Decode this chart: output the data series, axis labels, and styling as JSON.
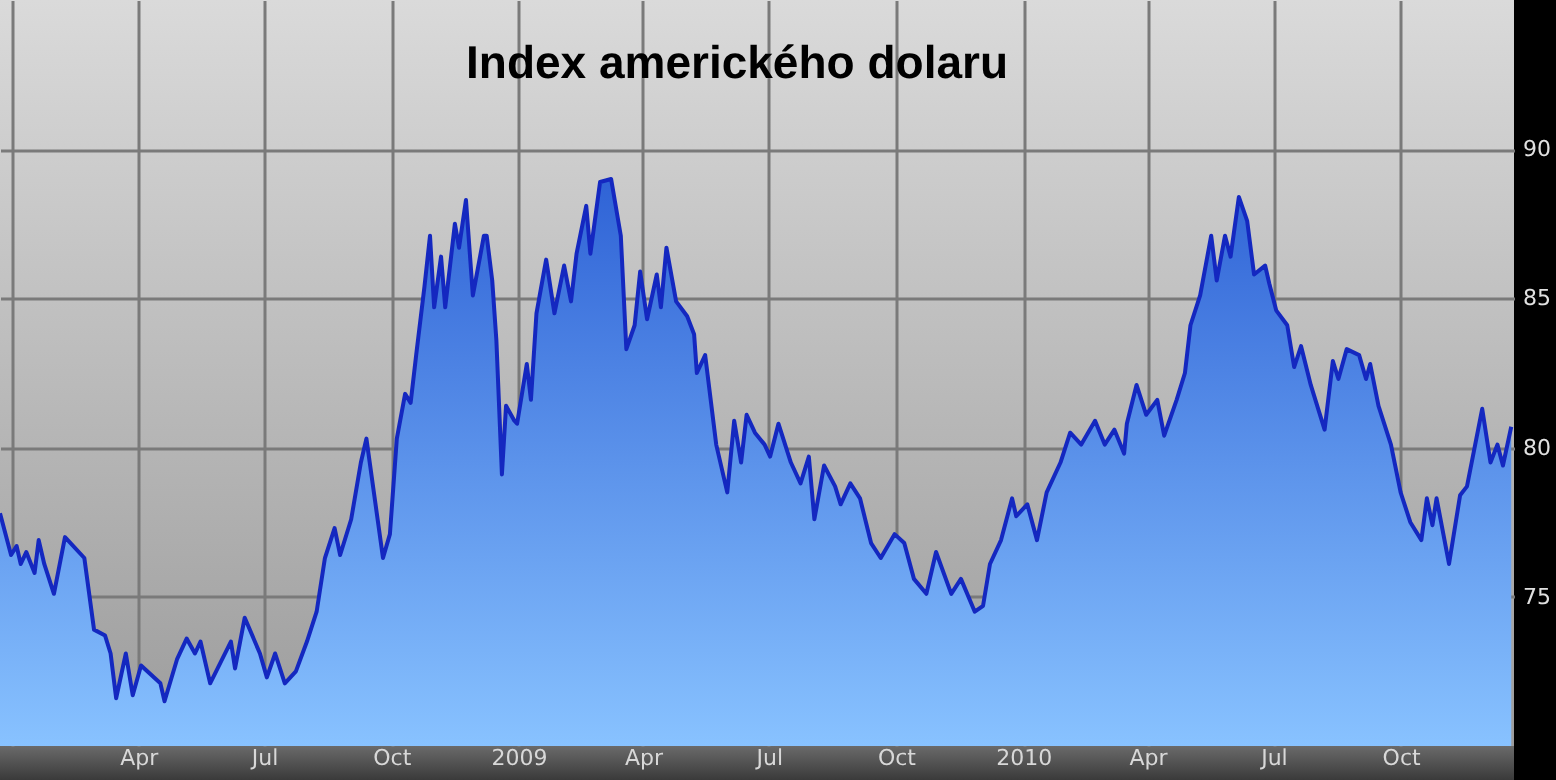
{
  "chart_data": {
    "type": "area",
    "title": "Index amerického dolaru",
    "x": [
      "2007-12-23",
      "2007-12-31",
      "2008-01-04",
      "2008-01-07",
      "2008-01-11",
      "2008-01-17",
      "2008-01-20",
      "2008-01-24",
      "2008-01-31",
      "2008-02-08",
      "2008-02-22",
      "2008-02-29",
      "2008-03-08",
      "2008-03-12",
      "2008-03-16",
      "2008-03-23",
      "2008-03-28",
      "2008-04-03",
      "2008-04-17",
      "2008-04-20",
      "2008-04-29",
      "2008-05-06",
      "2008-05-12",
      "2008-05-16",
      "2008-05-23",
      "2008-06-07",
      "2008-06-10",
      "2008-06-17",
      "2008-06-28",
      "2008-07-03",
      "2008-07-09",
      "2008-07-16",
      "2008-07-24",
      "2008-08-01",
      "2008-08-08",
      "2008-08-14",
      "2008-08-21",
      "2008-08-25",
      "2008-09-02",
      "2008-09-09",
      "2008-09-13",
      "2008-09-19",
      "2008-09-25",
      "2008-09-30",
      "2008-10-05",
      "2008-10-11",
      "2008-10-15",
      "2008-10-19",
      "2008-10-25",
      "2008-10-29",
      "2008-11-01",
      "2008-11-06",
      "2008-11-09",
      "2008-11-16",
      "2008-11-19",
      "2008-11-24",
      "2008-11-29",
      "2008-12-07",
      "2008-12-09",
      "2008-12-13",
      "2008-12-16",
      "2008-12-20",
      "2008-12-23",
      "2008-12-29",
      "2008-12-31",
      "2009-01-07",
      "2009-01-10",
      "2009-01-14",
      "2009-01-21",
      "2009-01-27",
      "2009-02-03",
      "2009-02-08",
      "2009-02-12",
      "2009-02-19",
      "2009-02-22",
      "2009-03-01",
      "2009-03-09",
      "2009-03-16",
      "2009-03-20",
      "2009-03-26",
      "2009-03-30",
      "2009-04-04",
      "2009-04-11",
      "2009-04-14",
      "2009-04-18",
      "2009-04-25",
      "2009-05-03",
      "2009-05-08",
      "2009-05-10",
      "2009-05-16",
      "2009-05-24",
      "2009-06-01",
      "2009-06-06",
      "2009-06-11",
      "2009-06-15",
      "2009-06-21",
      "2009-06-28",
      "2009-07-02",
      "2009-07-08",
      "2009-07-17",
      "2009-07-24",
      "2009-07-30",
      "2009-08-03",
      "2009-08-10",
      "2009-08-18",
      "2009-08-22",
      "2009-08-29",
      "2009-09-05",
      "2009-09-13",
      "2009-09-20",
      "2009-09-30",
      "2009-10-07",
      "2009-10-14",
      "2009-10-23",
      "2009-10-30",
      "2009-11-10",
      "2009-11-17",
      "2009-11-27",
      "2009-12-03",
      "2009-12-08",
      "2009-12-16",
      "2009-12-24",
      "2009-12-27",
      "2010-01-04",
      "2010-01-11",
      "2010-01-18",
      "2010-01-28",
      "2010-02-04",
      "2010-02-12",
      "2010-02-22",
      "2010-03-01",
      "2010-03-08",
      "2010-03-15",
      "2010-03-17",
      "2010-03-24",
      "2010-03-31",
      "2010-04-08",
      "2010-04-13",
      "2010-04-22",
      "2010-04-28",
      "2010-05-02",
      "2010-05-09",
      "2010-05-17",
      "2010-05-21",
      "2010-05-27",
      "2010-05-31",
      "2010-06-06",
      "2010-06-12",
      "2010-06-17",
      "2010-06-25",
      "2010-06-28",
      "2010-07-03",
      "2010-07-11",
      "2010-07-16",
      "2010-07-21",
      "2010-07-28",
      "2010-08-07",
      "2010-08-13",
      "2010-08-17",
      "2010-08-23",
      "2010-09-01",
      "2010-09-06",
      "2010-09-09",
      "2010-09-15",
      "2010-09-24",
      "2010-10-01",
      "2010-10-08",
      "2010-10-16",
      "2010-10-20",
      "2010-10-24",
      "2010-10-27",
      "2010-11-05",
      "2010-11-13",
      "2010-11-18",
      "2010-11-29",
      "2010-12-05",
      "2010-12-10",
      "2010-12-14",
      "2010-12-20"
    ],
    "series": [
      {
        "color": "#1428c0",
        "values": [
          77.8,
          76.4,
          76.7,
          76.1,
          76.5,
          75.8,
          76.9,
          76.1,
          75.1,
          77.0,
          76.3,
          73.9,
          73.7,
          73.1,
          71.6,
          73.1,
          71.7,
          72.7,
          72.1,
          71.5,
          72.9,
          73.6,
          73.1,
          73.5,
          72.1,
          73.5,
          72.6,
          74.3,
          73.1,
          72.3,
          73.1,
          72.1,
          72.5,
          73.5,
          74.5,
          76.3,
          77.3,
          76.4,
          77.6,
          79.5,
          80.3,
          78.3,
          76.3,
          77.1,
          80.3,
          81.8,
          81.5,
          83.1,
          85.4,
          87.1,
          84.7,
          86.4,
          84.7,
          87.5,
          86.7,
          88.3,
          85.1,
          87.1,
          87.1,
          85.6,
          83.6,
          79.1,
          81.4,
          80.9,
          80.8,
          82.8,
          81.6,
          84.5,
          86.3,
          84.5,
          86.1,
          84.9,
          86.5,
          88.1,
          86.5,
          88.9,
          89.0,
          87.1,
          83.3,
          84.1,
          85.9,
          84.3,
          85.8,
          84.7,
          86.7,
          84.9,
          84.4,
          83.8,
          82.5,
          83.1,
          80.1,
          78.5,
          80.9,
          79.5,
          81.1,
          80.5,
          80.1,
          79.7,
          80.8,
          79.5,
          78.8,
          79.7,
          77.6,
          79.4,
          78.7,
          78.1,
          78.8,
          78.3,
          76.8,
          76.3,
          77.1,
          76.8,
          75.6,
          75.1,
          76.5,
          75.1,
          75.6,
          74.5,
          74.7,
          76.1,
          76.9,
          78.3,
          77.7,
          78.1,
          76.9,
          78.5,
          79.5,
          80.5,
          80.1,
          80.9,
          80.1,
          80.6,
          79.8,
          80.8,
          82.1,
          81.1,
          81.6,
          80.4,
          81.6,
          82.5,
          84.1,
          85.1,
          87.1,
          85.6,
          87.1,
          86.4,
          88.4,
          87.6,
          85.8,
          86.1,
          85.5,
          84.6,
          84.1,
          82.7,
          83.4,
          82.1,
          80.6,
          82.9,
          82.3,
          83.3,
          83.1,
          82.3,
          82.8,
          81.4,
          80.1,
          78.5,
          77.5,
          76.9,
          78.3,
          77.4,
          78.3,
          76.1,
          78.4,
          78.7,
          81.3,
          79.5,
          80.1,
          79.4,
          80.7
        ]
      }
    ],
    "xlim": [
      "2007-12-23",
      "2010-12-22"
    ],
    "xticks": [
      {
        "value": "2008-01-01",
        "label": null
      },
      {
        "value": "2008-04-01",
        "label": "Apr"
      },
      {
        "value": "2008-07-01",
        "label": "Jul"
      },
      {
        "value": "2008-10-01",
        "label": "Oct"
      },
      {
        "value": "2009-01-01",
        "label": "2009"
      },
      {
        "value": "2009-04-01",
        "label": "Apr"
      },
      {
        "value": "2009-07-01",
        "label": "Jul"
      },
      {
        "value": "2009-10-01",
        "label": "Oct"
      },
      {
        "value": "2010-01-01",
        "label": "2010"
      },
      {
        "value": "2010-04-01",
        "label": "Apr"
      },
      {
        "value": "2010-07-01",
        "label": "Jul"
      },
      {
        "value": "2010-10-01",
        "label": "Oct"
      }
    ],
    "ylim": [
      70,
      95
    ],
    "yticks": [
      75,
      80,
      85,
      90
    ],
    "grid": true
  }
}
